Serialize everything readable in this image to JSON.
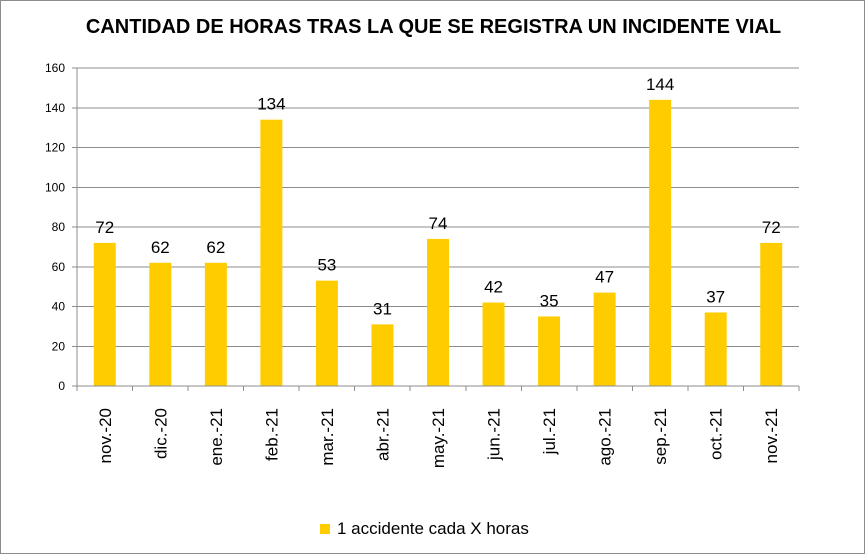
{
  "chart_data": {
    "type": "bar",
    "title": "CANTIDAD DE HORAS TRAS LA QUE SE REGISTRA UN INCIDENTE VIAL",
    "categories": [
      "nov.-20",
      "dic.-20",
      "ene.-21",
      "feb.-21",
      "mar.-21",
      "abr.-21",
      "may.-21",
      "jun.-21",
      "jul.-21",
      "ago.-21",
      "sep.-21",
      "oct.-21",
      "nov.-21"
    ],
    "series": [
      {
        "name": "1 accidente cada X horas",
        "values": [
          72,
          62,
          62,
          134,
          53,
          31,
          74,
          42,
          35,
          47,
          144,
          37,
          72
        ],
        "color": "#FFCC00"
      }
    ],
    "ylim": [
      0,
      160
    ],
    "yticks": [
      0,
      20,
      40,
      60,
      80,
      100,
      120,
      140,
      160
    ],
    "grid": true,
    "legend_position": "bottom",
    "data_labels": true
  }
}
